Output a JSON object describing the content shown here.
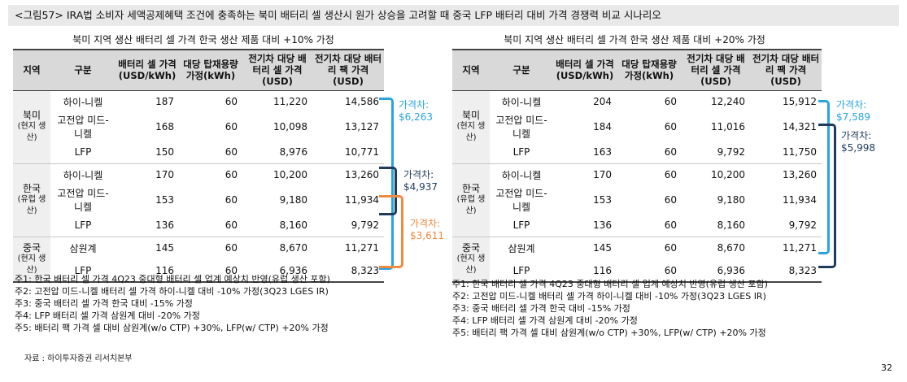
{
  "title": "<그림57> IRA법 소비자 세액공제혜택 조건에 충족하는 북미 배터리 셀 생산시 원가 상승을 고려할 때 중국 LFP 배터리 대비 가격 경쟁력 비교 시나리오",
  "left": {
    "subtitle": "북미 지역 생산 배터리 셀 가격 한국 생산 제품 대비 +10% 가정",
    "headers": [
      "지역",
      "구분",
      "배터리 셀 가격 (USD/kWh)",
      "대당 탑재용량 가정(kWh)",
      "전기차 대당 배터리 셀 가격 (USD)",
      "전기차 대당 배터리 팩 가격 (USD)"
    ],
    "regions": [
      {
        "main": "북미",
        "sub": "(현지 생산)"
      },
      {
        "main": "한국",
        "sub": "(유럽 생산)"
      },
      {
        "main": "중국",
        "sub": "(현지 생산)"
      }
    ],
    "rows": [
      [
        "하이-니켈",
        "187",
        "60",
        "11,220",
        "14,586"
      ],
      [
        "고전압 미드-니켈",
        "168",
        "60",
        "10,098",
        "13,127"
      ],
      [
        "LFP",
        "150",
        "60",
        "8,976",
        "10,771"
      ],
      [
        "하이-니켈",
        "170",
        "60",
        "10,200",
        "13,260"
      ],
      [
        "고전압 미드-니켈",
        "153",
        "60",
        "9,180",
        "11,934"
      ],
      [
        "LFP",
        "136",
        "60",
        "8,160",
        "9,792"
      ],
      [
        "삼원계",
        "145",
        "60",
        "8,670",
        "11,271"
      ],
      [
        "LFP",
        "116",
        "60",
        "6,936",
        "8,323"
      ]
    ],
    "gap_label": "가격차:",
    "gaps": [
      "$6,263",
      "$4,937",
      "$3,611"
    ],
    "notes": [
      "주1: 한국 배터리 셀 가격 4Q23 중대형 배터리 셀 업계 예상치 반영(유럽 생산 포함)",
      "주2: 고전압 미드-니켈 배터리 셀 가격 하이-니켈 대비 -10% 가정(3Q23 LGES IR)",
      "주3: 중국 배터리 셀 가격 한국 대비 -15% 가정",
      "주4: LFP 배터리 셀 가격 삼원계 대비 -20% 가정",
      "주5: 배터리 팩 가격 셀 대비 삼원계(w/o CTP) +30%, LFP(w/ CTP) +20% 가정"
    ]
  },
  "right": {
    "subtitle": "북미 지역 생산 배터리 셀 가격 한국 생산 제품 대비 +20% 가정",
    "headers": [
      "지역",
      "구분",
      "배터리 셀 가격 (USD/kWh)",
      "대당 탑재용량 가정(kWh)",
      "전기차 대당 배터리 셀 가격 (USD)",
      "전기차 대당 배터리 팩 가격 (USD)"
    ],
    "regions": [
      {
        "main": "북미",
        "sub": "(현지 생산)"
      },
      {
        "main": "한국",
        "sub": "(유럽 생산)"
      },
      {
        "main": "중국",
        "sub": "(현지 생산)"
      }
    ],
    "rows": [
      [
        "하이-니켈",
        "204",
        "60",
        "12,240",
        "15,912"
      ],
      [
        "고전압 미드-니켈",
        "184",
        "60",
        "11,016",
        "14,321"
      ],
      [
        "LFP",
        "163",
        "60",
        "9,792",
        "11,750"
      ],
      [
        "하이-니켈",
        "170",
        "60",
        "10,200",
        "13,260"
      ],
      [
        "고전압 미드-니켈",
        "153",
        "60",
        "9,180",
        "11,934"
      ],
      [
        "LFP",
        "136",
        "60",
        "8,160",
        "9,792"
      ],
      [
        "삼원계",
        "145",
        "60",
        "8,670",
        "11,271"
      ],
      [
        "LFP",
        "116",
        "60",
        "6,936",
        "8,323"
      ]
    ],
    "gap_label": "가격차:",
    "gaps": [
      "$7,589",
      "$5,998"
    ],
    "notes": [
      "주1: 한국 배터리 셀 가격 4Q23 중대형 배터리 셀 업계 예상치 반영(유럽 생산 포함)",
      "주2: 고전압 미드-니켈 배터리 셀 가격 하이-니켈 대비 -10% 가정(3Q23 LGES IR)",
      "주3: 중국 배터리 셀 가격 한국 대비 -15% 가정",
      "주4: LFP 배터리 셀 가격 삼원계 대비 -20% 가정",
      "주5: 배터리 팩 가격 셀 대비 삼원계(w/o CTP) +30%, LFP(w/ CTP) +20% 가정"
    ]
  },
  "source": "자료 : 하이투자증권 리서치본부",
  "page_number": "32",
  "colors": {
    "blue_light": "#2aa4e0",
    "navy": "#1f3b5c",
    "orange": "#f08a3c"
  }
}
